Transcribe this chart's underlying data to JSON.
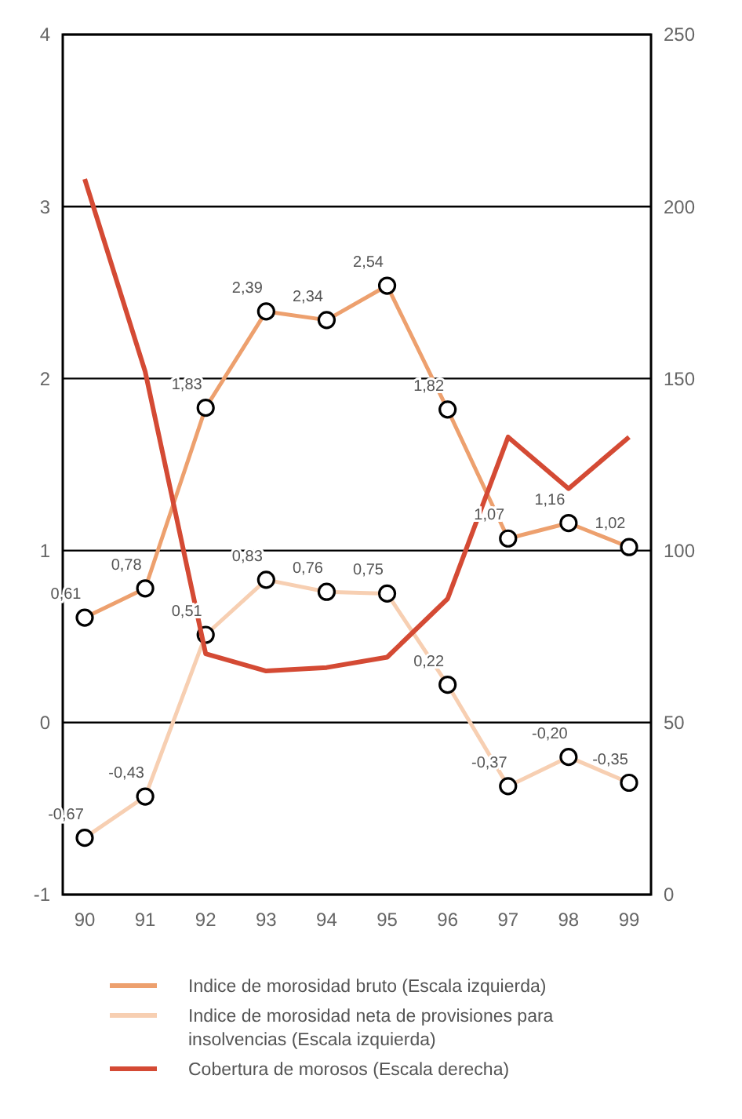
{
  "chart_data": {
    "type": "line",
    "categories": [
      "90",
      "91",
      "92",
      "93",
      "94",
      "95",
      "96",
      "97",
      "98",
      "99"
    ],
    "series": [
      {
        "name": "Indice de morosidad bruto (Escala izquierda)",
        "color": "#eda06e",
        "marker": "circle",
        "values": [
          0.61,
          0.78,
          1.83,
          2.39,
          2.34,
          2.54,
          1.82,
          1.07,
          1.16,
          1.02
        ],
        "value_labels": [
          "0,61",
          "0,78",
          "1,83",
          "2,39",
          "2,34",
          "2,54",
          "1,82",
          "1,07",
          "1,16",
          "1,02"
        ]
      },
      {
        "name": "Indice de morosidad neta de provisiones para insolvencias (Escala izquierda)",
        "color": "#f7cfb2",
        "marker": "circle",
        "values": [
          -0.67,
          -0.43,
          0.51,
          0.83,
          0.76,
          0.75,
          0.22,
          -0.37,
          -0.2,
          -0.35
        ],
        "value_labels": [
          "-0,67",
          "-0,43",
          "0,51",
          "0,83",
          "0,76",
          "0,75",
          "0,22",
          "-0,37",
          "-0,20",
          "-0,35"
        ]
      },
      {
        "name": "Cobertura de morosos (Escala derecha)",
        "color": "#d44a34",
        "marker": "none",
        "axis": "y2",
        "values": [
          208,
          152,
          70,
          65,
          66,
          69,
          86,
          133,
          118,
          133
        ]
      }
    ],
    "ylim": [
      -1,
      4
    ],
    "yticks": [
      -1,
      0,
      1,
      2,
      3,
      4
    ],
    "y2lim": [
      0,
      250
    ],
    "y2ticks": [
      0,
      50,
      100,
      150,
      200,
      250
    ],
    "grid": "y",
    "legend": "bottom"
  }
}
